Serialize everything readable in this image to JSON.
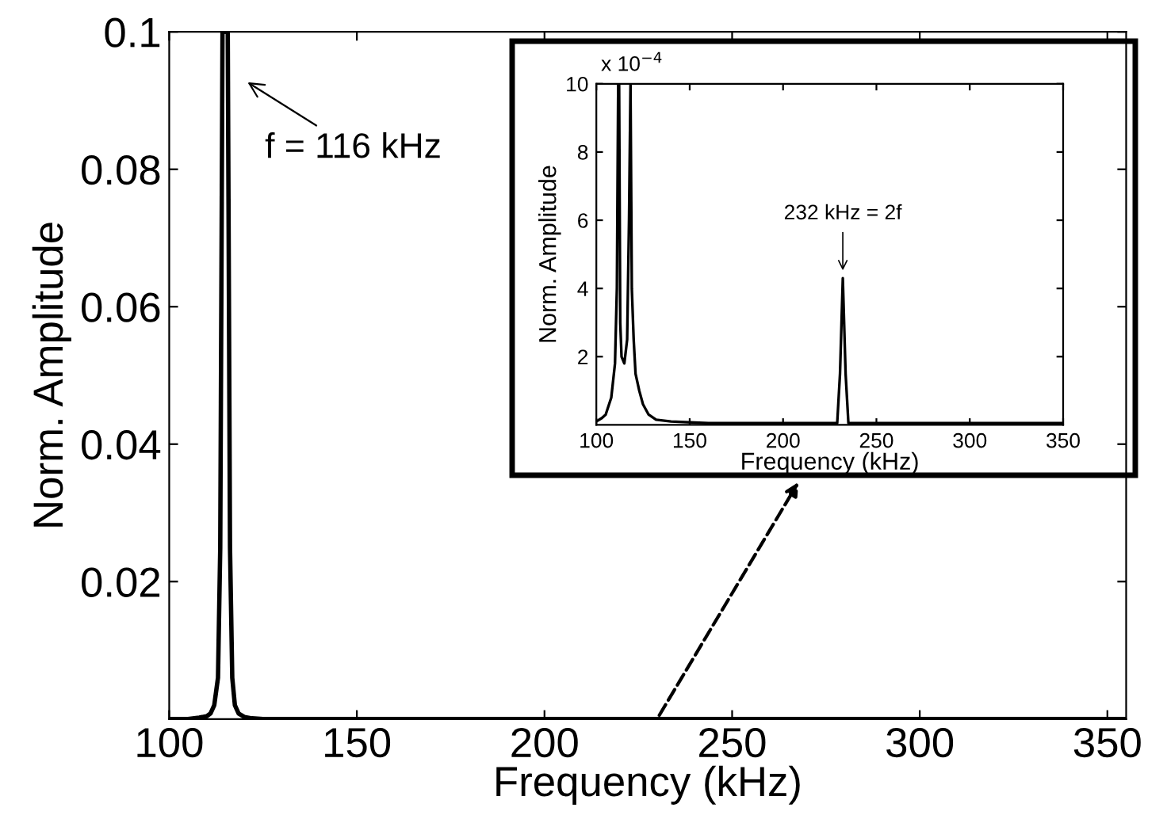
{
  "chart_data": [
    {
      "type": "line",
      "xlabel": "Frequency (kHz)",
      "ylabel": "Norm. Amplitude",
      "color": "#000000",
      "x": [
        100,
        105,
        108,
        110,
        111,
        112,
        113,
        113.6,
        114.2,
        115.6,
        116.2,
        116.8,
        117.5,
        118.5,
        120,
        122,
        125,
        130,
        150,
        200,
        250,
        300,
        355
      ],
      "values": [
        0,
        0,
        0.0002,
        0.0004,
        0.0008,
        0.002,
        0.006,
        0.025,
        0.1,
        0.1,
        0.025,
        0.006,
        0.002,
        0.0008,
        0.0003,
        0.0001,
        0,
        0,
        0,
        0,
        0,
        0,
        0
      ],
      "xlim": [
        100,
        355
      ],
      "xticks": [
        100,
        150,
        200,
        250,
        300,
        350
      ],
      "ylim": [
        0,
        0.1
      ],
      "yticks": [
        0.02,
        0.04,
        0.06,
        0.08,
        0.1
      ],
      "grid": false,
      "annotations": [
        "f = 116 kHz"
      ]
    },
    {
      "type": "line",
      "xlabel": "Frequency (kHz)",
      "ylabel": "Norm. Amplitude",
      "color": "#000000",
      "x": [
        100,
        103,
        105,
        108,
        110,
        111,
        111.7,
        112.2,
        112.8,
        113.5,
        115,
        116.5,
        117.5,
        118.3,
        119,
        120,
        121,
        123,
        125,
        128,
        132,
        140,
        160,
        200,
        229,
        230.5,
        232,
        233.5,
        235,
        260,
        300,
        350
      ],
      "values": [
        0.1,
        0.2,
        0.3,
        0.8,
        1.8,
        4,
        10,
        10,
        3,
        2,
        1.8,
        2.5,
        6,
        10,
        4,
        2.5,
        1.5,
        1,
        0.6,
        0.3,
        0.15,
        0.1,
        0.05,
        0.05,
        0.05,
        1.5,
        4.3,
        1.5,
        0.05,
        0.05,
        0.05,
        0.05
      ],
      "xlim": [
        100,
        350
      ],
      "xticks": [
        100,
        150,
        200,
        250,
        300,
        350
      ],
      "ylim": [
        0,
        10
      ],
      "yticks": [
        2,
        4,
        6,
        8,
        10
      ],
      "grid": false,
      "annotations": [
        "x 10$^{−4}$",
        {
          "text": "232 kHz = 2f",
          "x": 232,
          "y": 4.4
        }
      ]
    }
  ]
}
